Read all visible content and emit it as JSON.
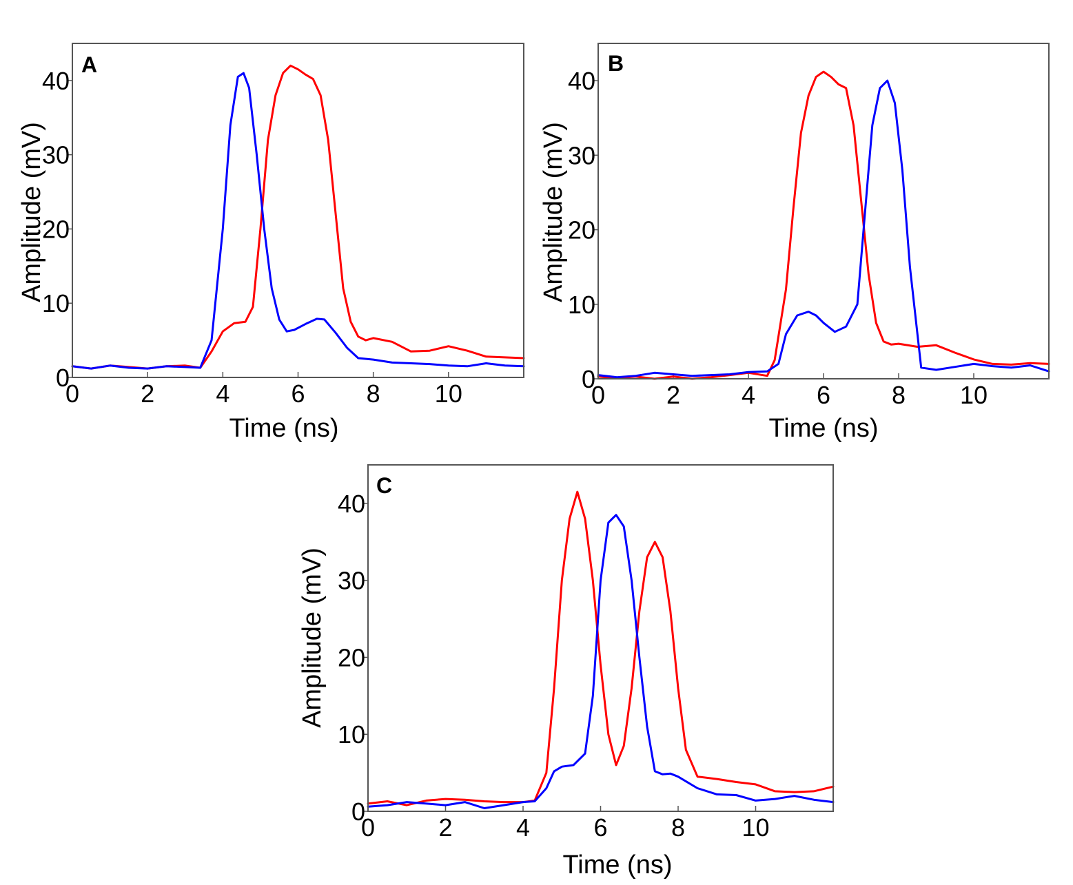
{
  "chart_data": [
    {
      "type": "line",
      "panel": "A",
      "xlabel": "Time (ns)",
      "ylabel": "Amplitude (mV)",
      "xlim": [
        0,
        12
      ],
      "ylim": [
        0,
        45
      ],
      "xticks": [
        0,
        2,
        4,
        6,
        8,
        10
      ],
      "yticks": [
        0,
        10,
        20,
        30,
        40
      ],
      "colors": [
        "#ff0000",
        "#0000ff"
      ],
      "series": [
        {
          "name": "red",
          "color": "#ff0000",
          "x": [
            0,
            0.5,
            1,
            1.5,
            2,
            2.5,
            3,
            3.4,
            3.7,
            4,
            4.3,
            4.6,
            4.8,
            5,
            5.2,
            5.4,
            5.6,
            5.8,
            6,
            6.2,
            6.4,
            6.6,
            6.8,
            7,
            7.2,
            7.4,
            7.6,
            7.8,
            8,
            8.5,
            9,
            9.5,
            10,
            10.5,
            11,
            11.5,
            12
          ],
          "y": [
            1.5,
            1.2,
            1.6,
            1.4,
            1.2,
            1.5,
            1.6,
            1.3,
            3.5,
            6.2,
            7.3,
            7.5,
            9.5,
            20,
            32,
            38,
            41,
            42,
            41.5,
            40.8,
            40.2,
            38,
            32,
            22,
            12,
            7.5,
            5.5,
            5.0,
            5.3,
            4.8,
            3.5,
            3.6,
            4.2,
            3.6,
            2.8,
            2.7,
            2.6
          ]
        },
        {
          "name": "blue",
          "color": "#0000ff",
          "x": [
            0,
            0.5,
            1,
            1.5,
            2,
            2.5,
            3,
            3.4,
            3.7,
            4,
            4.2,
            4.4,
            4.55,
            4.7,
            4.9,
            5.1,
            5.3,
            5.5,
            5.7,
            5.9,
            6.2,
            6.5,
            6.7,
            7,
            7.3,
            7.6,
            8,
            8.5,
            9,
            9.5,
            10,
            10.5,
            11,
            11.5,
            12
          ],
          "y": [
            1.5,
            1.2,
            1.6,
            1.3,
            1.2,
            1.5,
            1.4,
            1.3,
            5,
            20,
            34,
            40.5,
            41,
            39,
            30,
            20,
            12,
            7.8,
            6.2,
            6.4,
            7.2,
            7.9,
            7.8,
            6.0,
            4.0,
            2.6,
            2.4,
            2.0,
            1.9,
            1.8,
            1.6,
            1.5,
            1.9,
            1.6,
            1.5
          ]
        }
      ]
    },
    {
      "type": "line",
      "panel": "B",
      "xlabel": "Time (ns)",
      "ylabel": "Amplitude (mV)",
      "xlim": [
        0,
        12
      ],
      "ylim": [
        0,
        45
      ],
      "xticks": [
        0,
        2,
        4,
        6,
        8,
        10
      ],
      "yticks": [
        0,
        10,
        20,
        30,
        40
      ],
      "colors": [
        "#ff0000",
        "#0000ff"
      ],
      "series": [
        {
          "name": "red",
          "color": "#ff0000",
          "x": [
            0,
            0.5,
            1,
            1.5,
            2,
            2.5,
            3,
            3.5,
            4,
            4.5,
            4.7,
            5,
            5.2,
            5.4,
            5.6,
            5.8,
            6,
            6.2,
            6.4,
            6.6,
            6.8,
            7,
            7.2,
            7.4,
            7.6,
            7.8,
            8,
            8.5,
            9,
            9.5,
            10,
            10.5,
            11,
            11.5,
            12
          ],
          "y": [
            0.3,
            0.1,
            0.3,
            0.0,
            0.3,
            0.0,
            0.2,
            0.5,
            0.8,
            0.4,
            2.5,
            12,
            23,
            33,
            38,
            40.5,
            41.2,
            40.5,
            39.5,
            39,
            34,
            24,
            14,
            7.5,
            5.0,
            4.6,
            4.7,
            4.3,
            4.5,
            3.5,
            2.6,
            2.0,
            1.9,
            2.1,
            2.0
          ]
        },
        {
          "name": "blue",
          "color": "#0000ff",
          "x": [
            0,
            0.5,
            1,
            1.5,
            2,
            2.5,
            3,
            3.5,
            4,
            4.5,
            4.8,
            5,
            5.3,
            5.6,
            5.8,
            6,
            6.3,
            6.6,
            6.9,
            7.1,
            7.3,
            7.5,
            7.7,
            7.9,
            8.1,
            8.3,
            8.6,
            9,
            9.5,
            10,
            10.5,
            11,
            11.5,
            12
          ],
          "y": [
            0.5,
            0.2,
            0.4,
            0.8,
            0.6,
            0.4,
            0.5,
            0.6,
            0.9,
            1.0,
            2.0,
            6.0,
            8.5,
            9.0,
            8.5,
            7.5,
            6.3,
            7.0,
            10,
            22,
            34,
            39,
            40,
            37,
            28,
            15,
            1.5,
            1.2,
            1.6,
            2.0,
            1.7,
            1.5,
            1.8,
            1.0
          ]
        }
      ]
    },
    {
      "type": "line",
      "panel": "C",
      "xlabel": "Time (ns)",
      "ylabel": "Amplitude (mV)",
      "xlim": [
        0,
        12
      ],
      "ylim": [
        0,
        45
      ],
      "xticks": [
        0,
        2,
        4,
        6,
        8,
        10
      ],
      "yticks": [
        0,
        10,
        20,
        30,
        40
      ],
      "colors": [
        "#ff0000",
        "#0000ff"
      ],
      "series": [
        {
          "name": "red",
          "color": "#ff0000",
          "x": [
            0,
            0.5,
            1,
            1.5,
            2,
            2.5,
            3,
            3.5,
            4,
            4.3,
            4.6,
            4.8,
            5,
            5.2,
            5.4,
            5.6,
            5.8,
            6,
            6.2,
            6.4,
            6.6,
            6.8,
            7,
            7.2,
            7.4,
            7.6,
            7.8,
            8,
            8.2,
            8.5,
            9,
            9.5,
            10,
            10.5,
            11,
            11.5,
            12
          ],
          "y": [
            1.0,
            1.3,
            0.8,
            1.4,
            1.6,
            1.5,
            1.3,
            1.2,
            1.2,
            1.4,
            5,
            16,
            30,
            38,
            41.5,
            38,
            30,
            19,
            10,
            6.0,
            8.5,
            16,
            26,
            33,
            35,
            33,
            26,
            16,
            8.0,
            4.5,
            4.2,
            3.8,
            3.5,
            2.6,
            2.5,
            2.6,
            3.2
          ]
        },
        {
          "name": "blue",
          "color": "#0000ff",
          "x": [
            0,
            0.5,
            1,
            1.5,
            2,
            2.5,
            3,
            3.5,
            4,
            4.3,
            4.6,
            4.8,
            5,
            5.3,
            5.6,
            5.8,
            6,
            6.2,
            6.4,
            6.6,
            6.8,
            7,
            7.2,
            7.4,
            7.6,
            7.8,
            8,
            8.5,
            9,
            9.5,
            10,
            10.5,
            11,
            11.5,
            12
          ],
          "y": [
            0.6,
            0.8,
            1.2,
            1.0,
            0.8,
            1.2,
            0.4,
            0.8,
            1.2,
            1.3,
            3.0,
            5.2,
            5.8,
            6.0,
            7.5,
            15,
            30,
            37.5,
            38.5,
            37,
            30,
            20,
            11,
            5.2,
            4.8,
            4.9,
            4.5,
            3.0,
            2.2,
            2.1,
            1.4,
            1.6,
            2.0,
            1.5,
            1.2
          ]
        }
      ]
    }
  ]
}
